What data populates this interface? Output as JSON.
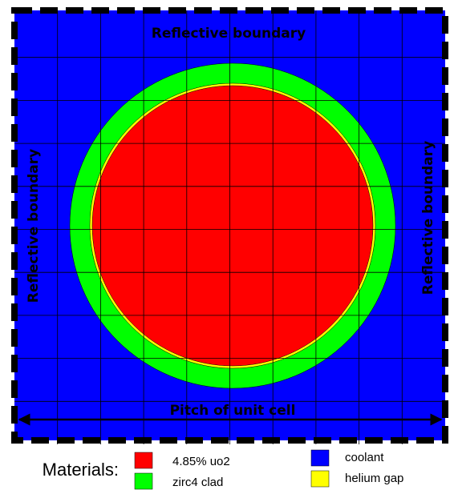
{
  "labels": {
    "top": "Reflective boundary",
    "left": "Reflective boundary",
    "right": "Reflective boundary",
    "pitch": "Pitch of unit cell"
  },
  "legend": {
    "title": "Materials:",
    "items": [
      {
        "label": "4.85% uo2",
        "color": "#ff0000"
      },
      {
        "label": "zirc4 clad",
        "color": "#00ff00"
      },
      {
        "label": "coolant",
        "color": "#0000ff"
      },
      {
        "label": "helium gap",
        "color": "#ffff00"
      }
    ]
  }
}
